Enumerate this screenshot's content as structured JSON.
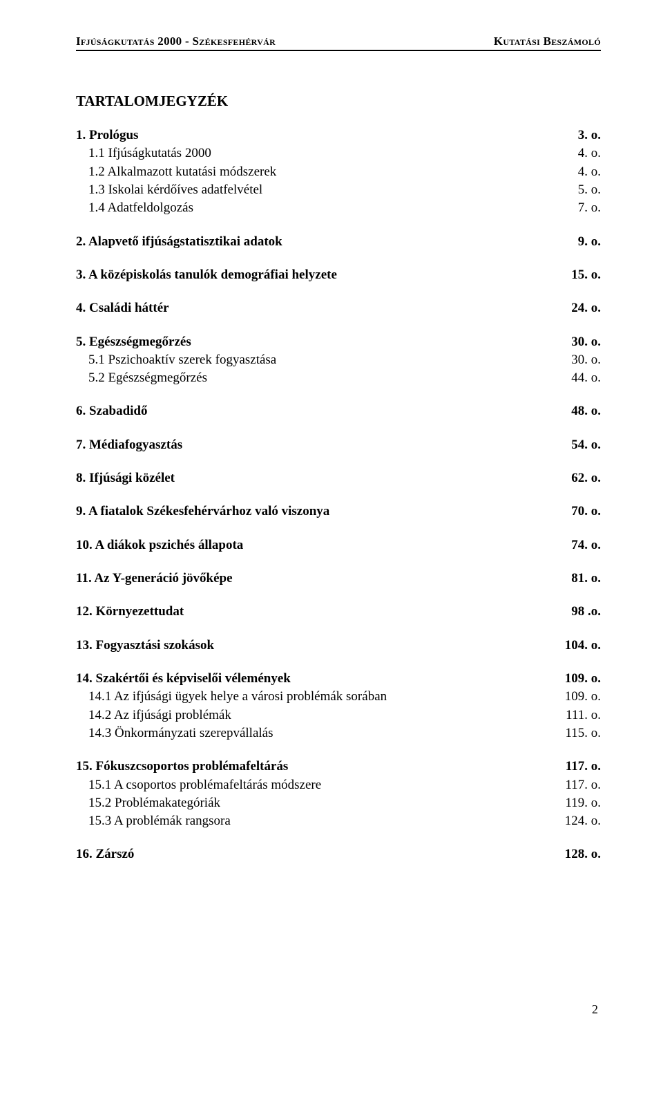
{
  "header": {
    "left": "Ifjúságkutatás 2000 - Székesfehérvár",
    "right": "Kutatási Beszámoló"
  },
  "tocTitle": "TARTALOMJEGYZÉK",
  "entries": [
    {
      "label": "1. Prológus",
      "page": "3. o.",
      "bold": true
    },
    {
      "label": "1.1 Ifjúságkutatás 2000",
      "page": "4. o.",
      "sub": true
    },
    {
      "label": "1.2 Alkalmazott kutatási módszerek",
      "page": "4. o.",
      "sub": true
    },
    {
      "label": "1.3 Iskolai kérdőíves adatfelvétel",
      "page": "5. o.",
      "sub": true
    },
    {
      "label": "1.4 Adatfeldolgozás",
      "page": "7. o.",
      "sub": true
    },
    {
      "gap": true
    },
    {
      "label": "2. Alapvető ifjúságstatisztikai adatok",
      "page": "9. o.",
      "bold": true
    },
    {
      "gap": true
    },
    {
      "label": "3. A középiskolás tanulók demográfiai helyzete",
      "page": "15. o.",
      "bold": true
    },
    {
      "gap": true
    },
    {
      "label": "4. Családi háttér",
      "page": "24. o.",
      "bold": true
    },
    {
      "gap": true
    },
    {
      "label": "5. Egészségmegőrzés",
      "page": "30. o.",
      "bold": true
    },
    {
      "label": "5.1 Pszichoaktív szerek fogyasztása",
      "page": "30. o.",
      "sub": true
    },
    {
      "label": "5.2 Egészségmegőrzés",
      "page": "44. o.",
      "sub": true
    },
    {
      "gap": true
    },
    {
      "label": "6. Szabadidő",
      "page": "48. o.",
      "bold": true
    },
    {
      "gap": true
    },
    {
      "label": "7. Médiafogyasztás",
      "page": "54. o.",
      "bold": true
    },
    {
      "gap": true
    },
    {
      "label": "8. Ifjúsági közélet",
      "page": "62. o.",
      "bold": true
    },
    {
      "gap": true
    },
    {
      "label": "9. A fiatalok Székesfehérvárhoz való viszonya",
      "page": "70. o.",
      "bold": true
    },
    {
      "gap": true
    },
    {
      "label": "10. A diákok pszichés állapota",
      "page": "74. o.",
      "bold": true
    },
    {
      "gap": true
    },
    {
      "label": "11. Az Y-generáció jövőképe",
      "page": "81. o.",
      "bold": true
    },
    {
      "gap": true
    },
    {
      "label": "12. Környezettudat",
      "page": "98 .o.",
      "bold": true
    },
    {
      "gap": true
    },
    {
      "label": "13. Fogyasztási szokások",
      "page": "104. o.",
      "bold": true
    },
    {
      "gap": true
    },
    {
      "label": "14. Szakértői és képviselői vélemények",
      "page": "109. o.",
      "bold": true
    },
    {
      "label": "14.1 Az ifjúsági ügyek helye a városi problémák sorában",
      "page": "109. o.",
      "sub": true
    },
    {
      "label": "14.2 Az ifjúsági problémák",
      "page": "111. o.",
      "sub": true
    },
    {
      "label": "14.3 Önkormányzati szerepvállalás",
      "page": "115. o.",
      "sub": true
    },
    {
      "gap": true
    },
    {
      "label": "15. Fókuszcsoportos problémafeltárás",
      "page": "117. o.",
      "bold": true
    },
    {
      "label": "15.1 A csoportos problémafeltárás módszere",
      "page": "117. o.",
      "sub": true
    },
    {
      "label": "15.2 Problémakategóriák",
      "page": "119. o.",
      "sub": true
    },
    {
      "label": "15.3 A problémák rangsora",
      "page": "124. o.",
      "sub": true
    },
    {
      "gap": true
    },
    {
      "label": "16. Zárszó",
      "page": "128. o.",
      "bold": true
    }
  ],
  "footer": {
    "pageNumber": "2"
  }
}
